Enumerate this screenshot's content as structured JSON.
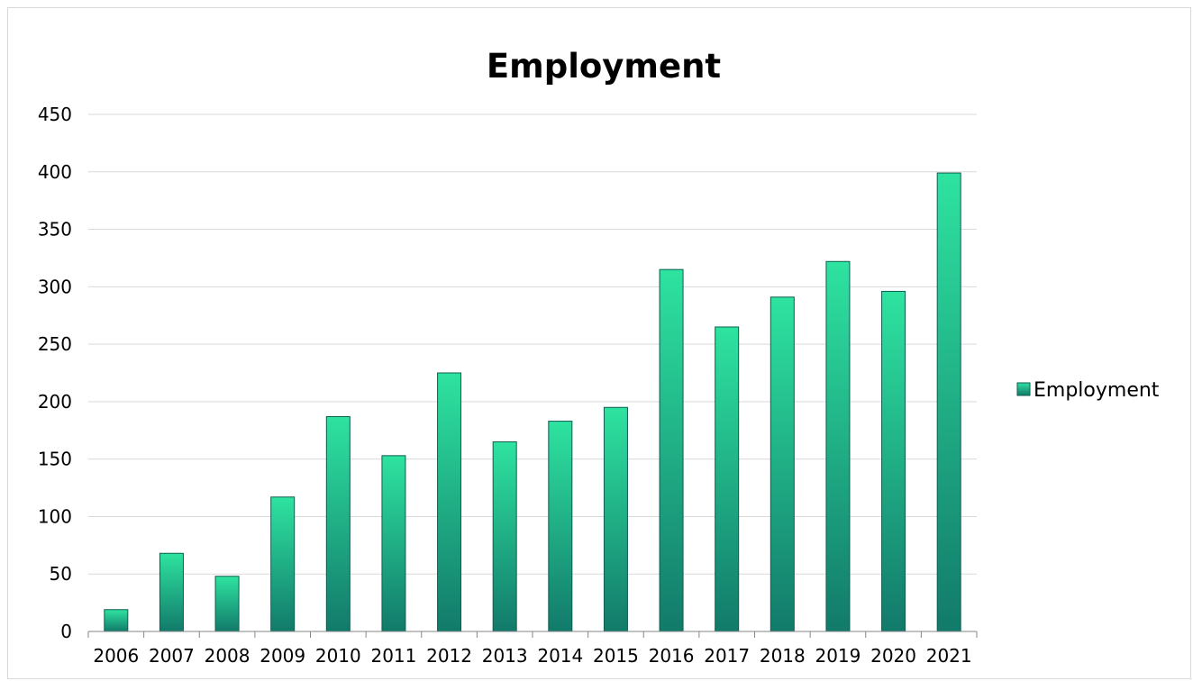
{
  "chart_data": {
    "type": "bar",
    "title": "Employment",
    "categories": [
      "2006",
      "2007",
      "2008",
      "2009",
      "2010",
      "2011",
      "2012",
      "2013",
      "2014",
      "2015",
      "2016",
      "2017",
      "2018",
      "2019",
      "2020",
      "2021"
    ],
    "series": [
      {
        "name": "Employment",
        "values": [
          19,
          68,
          48,
          117,
          187,
          153,
          225,
          165,
          183,
          195,
          315,
          265,
          291,
          322,
          296,
          399
        ]
      }
    ],
    "ylim": [
      0,
      450
    ],
    "yticks": [
      "0",
      "50",
      "100",
      "150",
      "200",
      "250",
      "300",
      "350",
      "400",
      "450"
    ],
    "grid": true,
    "legend_position": "right",
    "colors": {
      "bar_top": "#2ee3a0",
      "bar_bottom": "#127a6a",
      "bar_edge": "#0f5d50",
      "gridline": "#d9d9d9",
      "axis": "#868686"
    }
  }
}
